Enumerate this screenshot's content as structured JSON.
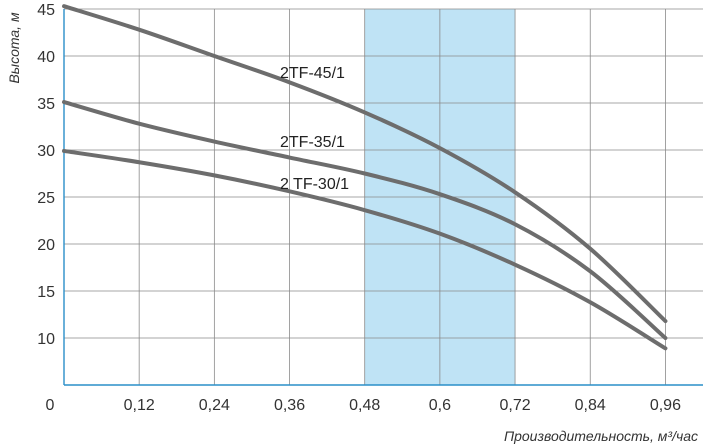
{
  "chart_data": {
    "type": "line",
    "title": "",
    "xlabel": "Производительность, м³/час",
    "ylabel": "Высота, м",
    "xlim": [
      0,
      1.02
    ],
    "ylim": [
      5,
      45
    ],
    "x_ticks": [
      0.12,
      0.24,
      0.36,
      0.48,
      0.6,
      0.72,
      0.84,
      0.96
    ],
    "x_tick_labels": [
      "0,12",
      "0,24",
      "0,36",
      "0,48",
      "0,6",
      "0,72",
      "0,84",
      "0,96"
    ],
    "origin_label": "0",
    "y_ticks": [
      10,
      15,
      20,
      25,
      30,
      35,
      40,
      45
    ],
    "y_tick_labels": [
      "10",
      "15",
      "20",
      "25",
      "30",
      "35",
      "40",
      "45"
    ],
    "grid": true,
    "highlight_band": {
      "x_from": 0.48,
      "x_to": 0.72,
      "color": "#bfe3f5"
    },
    "series": [
      {
        "name": "2TF-45/1",
        "x": [
          0,
          0.12,
          0.24,
          0.36,
          0.48,
          0.6,
          0.72,
          0.84,
          0.96
        ],
        "y": [
          45.3,
          42.8,
          40.0,
          37.2,
          34.0,
          30.2,
          25.5,
          19.5,
          11.8
        ],
        "color": "#6d6d6d"
      },
      {
        "name": "2TF-35/1",
        "x": [
          0,
          0.12,
          0.24,
          0.36,
          0.48,
          0.6,
          0.72,
          0.84,
          0.96
        ],
        "y": [
          35.1,
          32.8,
          30.9,
          29.2,
          27.5,
          25.3,
          22.1,
          17.1,
          10.0
        ],
        "color": "#6d6d6d"
      },
      {
        "name": "2 TF-30/1",
        "x": [
          0,
          0.12,
          0.24,
          0.36,
          0.48,
          0.6,
          0.72,
          0.84,
          0.96
        ],
        "y": [
          29.9,
          28.7,
          27.3,
          25.6,
          23.6,
          21.1,
          17.8,
          13.8,
          8.9
        ],
        "color": "#6d6d6d"
      }
    ]
  }
}
